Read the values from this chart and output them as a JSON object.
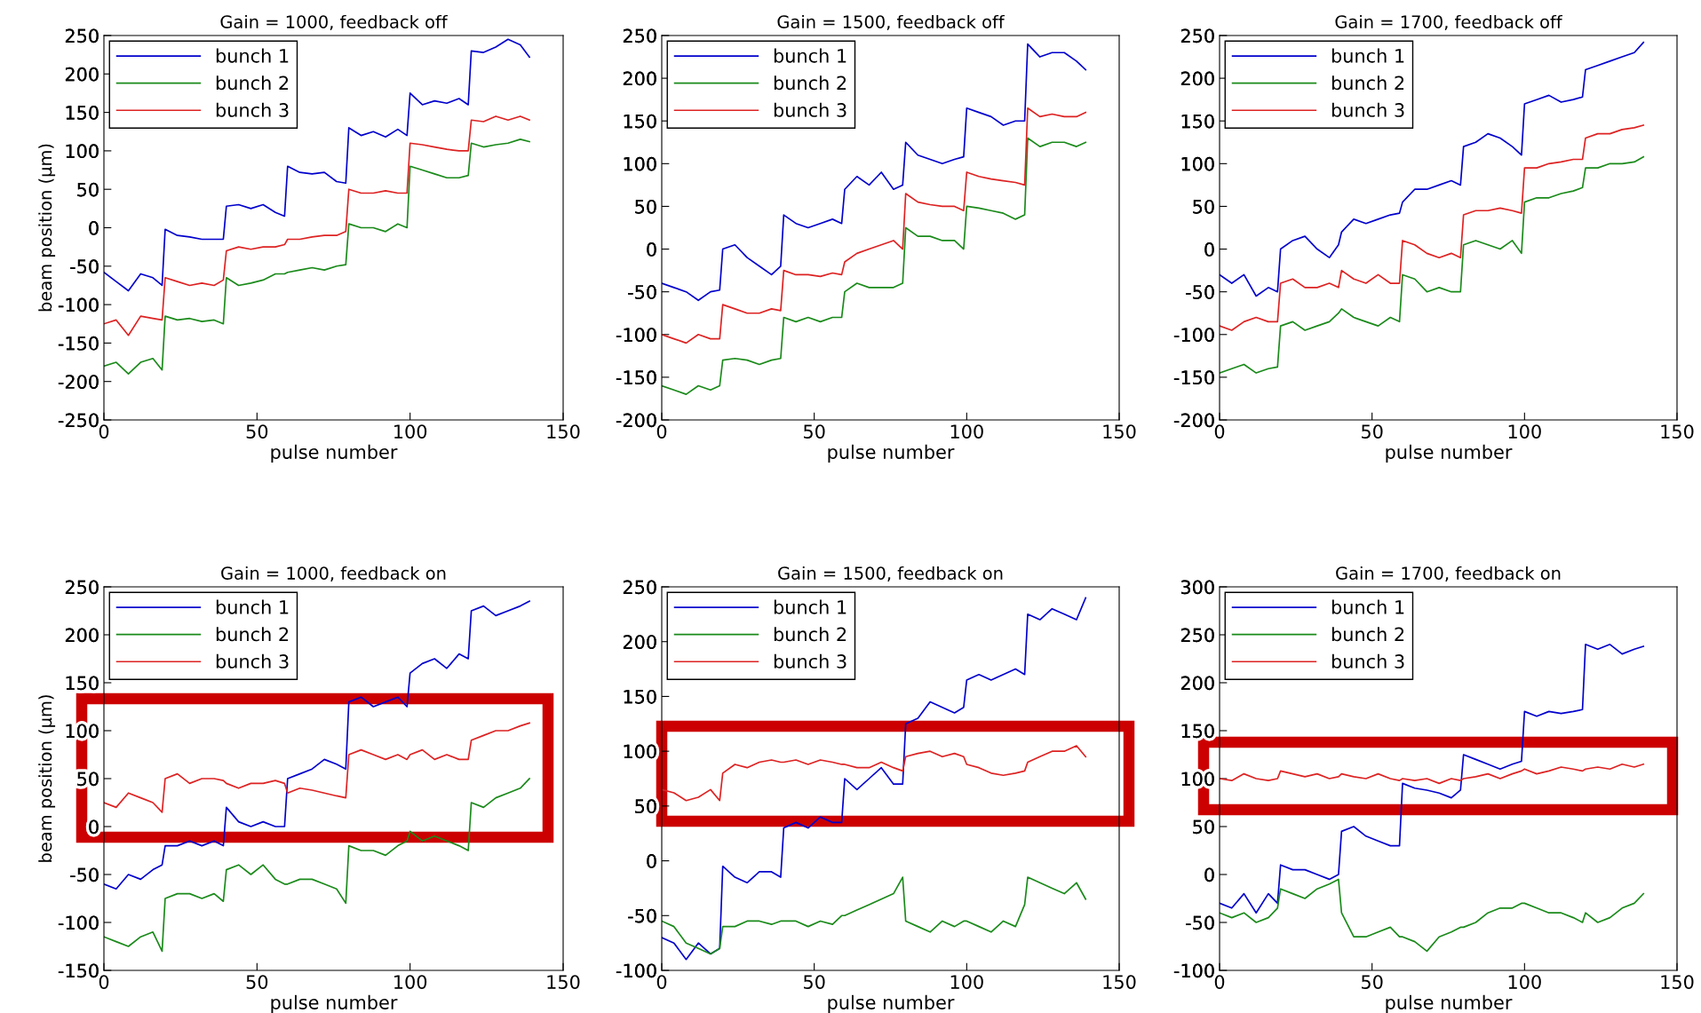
{
  "chart_data": [
    {
      "type": "line",
      "title": "Gain = 1000, feedback off",
      "xlabel": "pulse number",
      "ylabel": "beam position (μm)",
      "legend": "top left",
      "grid": false,
      "xlim": [
        0,
        150
      ],
      "xticks": [
        0,
        50,
        100,
        150
      ],
      "ylim": [
        -250,
        250
      ],
      "yticks": [
        -250,
        -200,
        -150,
        -100,
        -50,
        0,
        50,
        100,
        150,
        200,
        250
      ],
      "x": [
        0,
        4,
        8,
        12,
        16,
        19,
        20,
        24,
        28,
        32,
        36,
        39,
        40,
        44,
        48,
        52,
        56,
        59,
        60,
        64,
        68,
        72,
        76,
        79,
        80,
        84,
        88,
        92,
        96,
        99,
        100,
        104,
        108,
        112,
        116,
        119,
        120,
        124,
        128,
        132,
        136,
        139
      ],
      "series": [
        {
          "name": "bunch 1",
          "color": "#0000cc",
          "values": [
            -58,
            -70,
            -82,
            -60,
            -65,
            -75,
            -2,
            -10,
            -12,
            -15,
            -15,
            -15,
            28,
            30,
            25,
            30,
            20,
            15,
            80,
            72,
            70,
            72,
            60,
            58,
            130,
            120,
            125,
            118,
            128,
            120,
            175,
            160,
            165,
            162,
            168,
            160,
            230,
            228,
            235,
            245,
            238,
            222
          ]
        },
        {
          "name": "bunch 2",
          "color": "#1a8a1a",
          "values": [
            -180,
            -175,
            -190,
            -175,
            -170,
            -185,
            -115,
            -120,
            -118,
            -122,
            -120,
            -125,
            -65,
            -75,
            -72,
            -68,
            -60,
            -60,
            -58,
            -55,
            -52,
            -55,
            -50,
            -48,
            5,
            0,
            0,
            -5,
            5,
            0,
            80,
            75,
            70,
            65,
            65,
            68,
            110,
            105,
            108,
            110,
            115,
            112
          ]
        },
        {
          "name": "bunch 3",
          "color": "#dd2222",
          "values": [
            -125,
            -120,
            -140,
            -115,
            -118,
            -120,
            -65,
            -70,
            -75,
            -72,
            -75,
            -68,
            -30,
            -25,
            -28,
            -25,
            -25,
            -22,
            -15,
            -15,
            -12,
            -10,
            -10,
            -5,
            50,
            45,
            45,
            48,
            45,
            45,
            110,
            108,
            105,
            102,
            100,
            100,
            140,
            138,
            145,
            140,
            145,
            140
          ]
        }
      ]
    },
    {
      "type": "line",
      "title": "Gain = 1500, feedback off",
      "xlabel": "pulse number",
      "legend": "top left",
      "grid": false,
      "xlim": [
        0,
        150
      ],
      "xticks": [
        0,
        50,
        100,
        150
      ],
      "ylim": [
        -200,
        250
      ],
      "yticks": [
        -200,
        -150,
        -100,
        -50,
        0,
        50,
        100,
        150,
        200,
        250
      ],
      "x": [
        0,
        4,
        8,
        12,
        16,
        19,
        20,
        24,
        28,
        32,
        36,
        39,
        40,
        44,
        48,
        52,
        56,
        59,
        60,
        64,
        68,
        72,
        76,
        79,
        80,
        84,
        88,
        92,
        96,
        99,
        100,
        104,
        108,
        112,
        116,
        119,
        120,
        124,
        128,
        132,
        136,
        139
      ],
      "series": [
        {
          "name": "bunch 1",
          "color": "#0000cc",
          "values": [
            -40,
            -45,
            -50,
            -60,
            -50,
            -48,
            0,
            5,
            -10,
            -20,
            -30,
            -20,
            40,
            30,
            25,
            30,
            35,
            30,
            70,
            85,
            75,
            90,
            70,
            75,
            125,
            110,
            105,
            100,
            105,
            108,
            165,
            160,
            155,
            145,
            150,
            150,
            240,
            225,
            230,
            230,
            220,
            210
          ]
        },
        {
          "name": "bunch 2",
          "color": "#1a8a1a",
          "values": [
            -160,
            -165,
            -170,
            -160,
            -165,
            -160,
            -130,
            -128,
            -130,
            -135,
            -130,
            -128,
            -80,
            -85,
            -80,
            -85,
            -80,
            -80,
            -50,
            -40,
            -45,
            -45,
            -45,
            -40,
            25,
            15,
            15,
            10,
            10,
            0,
            50,
            48,
            45,
            42,
            35,
            40,
            130,
            120,
            125,
            125,
            120,
            125
          ]
        },
        {
          "name": "bunch 3",
          "color": "#dd2222",
          "values": [
            -100,
            -105,
            -110,
            -100,
            -105,
            -105,
            -65,
            -70,
            -75,
            -75,
            -70,
            -72,
            -25,
            -30,
            -30,
            -32,
            -28,
            -30,
            -15,
            -5,
            0,
            5,
            10,
            0,
            65,
            55,
            52,
            50,
            50,
            45,
            90,
            85,
            82,
            80,
            78,
            75,
            165,
            155,
            158,
            155,
            155,
            160
          ]
        }
      ]
    },
    {
      "type": "line",
      "title": "Gain = 1700, feedback off",
      "xlabel": "pulse number",
      "legend": "top left",
      "grid": false,
      "xlim": [
        0,
        150
      ],
      "xticks": [
        0,
        50,
        100,
        150
      ],
      "ylim": [
        -200,
        250
      ],
      "yticks": [
        -200,
        -150,
        -100,
        -50,
        0,
        50,
        100,
        150,
        200,
        250
      ],
      "x": [
        0,
        4,
        8,
        12,
        16,
        19,
        20,
        24,
        28,
        32,
        36,
        39,
        40,
        44,
        48,
        52,
        56,
        59,
        60,
        64,
        68,
        72,
        76,
        79,
        80,
        84,
        88,
        92,
        96,
        99,
        100,
        104,
        108,
        112,
        116,
        119,
        120,
        124,
        128,
        132,
        136,
        139
      ],
      "series": [
        {
          "name": "bunch 1",
          "color": "#0000cc",
          "values": [
            -30,
            -40,
            -30,
            -55,
            -45,
            -50,
            0,
            10,
            15,
            0,
            -10,
            5,
            20,
            35,
            30,
            35,
            40,
            42,
            55,
            70,
            70,
            75,
            80,
            75,
            120,
            125,
            135,
            130,
            120,
            110,
            170,
            175,
            180,
            172,
            175,
            178,
            210,
            215,
            220,
            225,
            230,
            242
          ]
        },
        {
          "name": "bunch 2",
          "color": "#1a8a1a",
          "values": [
            -145,
            -140,
            -135,
            -145,
            -140,
            -138,
            -90,
            -85,
            -95,
            -90,
            -85,
            -75,
            -70,
            -80,
            -85,
            -90,
            -80,
            -85,
            -30,
            -35,
            -50,
            -45,
            -50,
            -50,
            5,
            10,
            5,
            0,
            10,
            -5,
            55,
            60,
            60,
            65,
            68,
            72,
            95,
            95,
            100,
            100,
            102,
            108
          ]
        },
        {
          "name": "bunch 3",
          "color": "#dd2222",
          "values": [
            -90,
            -95,
            -85,
            -80,
            -85,
            -85,
            -40,
            -35,
            -45,
            -45,
            -40,
            -45,
            -25,
            -35,
            -40,
            -30,
            -40,
            -40,
            10,
            5,
            -5,
            -10,
            -5,
            -10,
            40,
            45,
            45,
            48,
            45,
            42,
            95,
            95,
            100,
            102,
            105,
            105,
            130,
            135,
            135,
            140,
            142,
            145
          ]
        }
      ]
    },
    {
      "type": "line",
      "title": "Gain = 1000, feedback on",
      "xlabel": "pulse number",
      "ylabel": "beam position (μm)",
      "legend": "top left",
      "grid": false,
      "xlim": [
        0,
        150
      ],
      "xticks": [
        0,
        50,
        100,
        150
      ],
      "ylim": [
        -150,
        250
      ],
      "yticks": [
        -150,
        -100,
        -50,
        0,
        50,
        100,
        150,
        200,
        250
      ],
      "x": [
        0,
        4,
        8,
        12,
        16,
        19,
        20,
        24,
        28,
        32,
        36,
        39,
        40,
        44,
        48,
        52,
        56,
        59,
        60,
        64,
        68,
        72,
        76,
        79,
        80,
        84,
        88,
        92,
        96,
        99,
        100,
        104,
        108,
        112,
        116,
        119,
        120,
        124,
        128,
        132,
        136,
        139
      ],
      "series": [
        {
          "name": "bunch 1",
          "color": "#0000cc",
          "values": [
            -60,
            -65,
            -50,
            -55,
            -45,
            -40,
            -20,
            -20,
            -15,
            -20,
            -15,
            -20,
            20,
            5,
            0,
            5,
            0,
            0,
            50,
            55,
            60,
            70,
            65,
            60,
            130,
            135,
            125,
            130,
            135,
            125,
            160,
            170,
            175,
            165,
            180,
            175,
            225,
            230,
            220,
            225,
            230,
            235
          ]
        },
        {
          "name": "bunch 2",
          "color": "#1a8a1a",
          "values": [
            -115,
            -120,
            -125,
            -115,
            -110,
            -130,
            -75,
            -70,
            -70,
            -75,
            -70,
            -78,
            -45,
            -40,
            -50,
            -40,
            -55,
            -60,
            -60,
            -55,
            -55,
            -60,
            -65,
            -80,
            -20,
            -25,
            -25,
            -30,
            -20,
            -15,
            -5,
            -15,
            -10,
            -15,
            -20,
            -25,
            25,
            20,
            30,
            35,
            40,
            50
          ]
        },
        {
          "name": "bunch 3",
          "color": "#dd2222",
          "values": [
            25,
            20,
            35,
            30,
            25,
            15,
            50,
            55,
            45,
            50,
            50,
            48,
            45,
            40,
            45,
            45,
            48,
            45,
            35,
            40,
            38,
            35,
            32,
            30,
            75,
            80,
            75,
            70,
            75,
            70,
            75,
            80,
            70,
            75,
            70,
            70,
            90,
            95,
            100,
            100,
            105,
            108
          ]
        }
      ]
    },
    {
      "type": "line",
      "title": "Gain = 1500, feedback on",
      "xlabel": "pulse number",
      "legend": "top left",
      "grid": false,
      "xlim": [
        0,
        150
      ],
      "xticks": [
        0,
        50,
        100,
        150
      ],
      "ylim": [
        -100,
        250
      ],
      "yticks": [
        -100,
        -50,
        0,
        50,
        100,
        150,
        200,
        250
      ],
      "x": [
        0,
        4,
        8,
        12,
        16,
        19,
        20,
        24,
        28,
        32,
        36,
        39,
        40,
        44,
        48,
        52,
        56,
        59,
        60,
        64,
        68,
        72,
        76,
        79,
        80,
        84,
        88,
        92,
        96,
        99,
        100,
        104,
        108,
        112,
        116,
        119,
        120,
        124,
        128,
        132,
        136,
        139
      ],
      "series": [
        {
          "name": "bunch 1",
          "color": "#0000cc",
          "values": [
            -70,
            -75,
            -90,
            -75,
            -85,
            -80,
            -5,
            -15,
            -20,
            -10,
            -10,
            -15,
            30,
            35,
            30,
            40,
            35,
            35,
            75,
            65,
            75,
            85,
            70,
            70,
            125,
            130,
            145,
            140,
            135,
            140,
            165,
            170,
            165,
            170,
            175,
            170,
            225,
            220,
            230,
            225,
            220,
            240
          ]
        },
        {
          "name": "bunch 2",
          "color": "#1a8a1a",
          "values": [
            -55,
            -60,
            -75,
            -80,
            -85,
            -80,
            -60,
            -60,
            -55,
            -55,
            -58,
            -55,
            -55,
            -55,
            -60,
            -55,
            -58,
            -50,
            -50,
            -45,
            -40,
            -35,
            -30,
            -15,
            -55,
            -60,
            -65,
            -55,
            -60,
            -55,
            -55,
            -60,
            -65,
            -55,
            -60,
            -40,
            -15,
            -20,
            -25,
            -30,
            -20,
            -35
          ]
        },
        {
          "name": "bunch 3",
          "color": "#dd2222",
          "values": [
            65,
            62,
            55,
            58,
            65,
            55,
            80,
            88,
            85,
            90,
            92,
            90,
            90,
            92,
            88,
            92,
            90,
            88,
            88,
            85,
            85,
            90,
            85,
            82,
            95,
            98,
            100,
            95,
            98,
            95,
            88,
            85,
            80,
            78,
            80,
            82,
            90,
            95,
            100,
            100,
            105,
            95
          ]
        }
      ]
    },
    {
      "type": "line",
      "title": "Gain = 1700, feedback on",
      "xlabel": "pulse number",
      "legend": "top left",
      "grid": false,
      "xlim": [
        0,
        150
      ],
      "xticks": [
        0,
        50,
        100,
        150
      ],
      "ylim": [
        -100,
        300
      ],
      "yticks": [
        -100,
        -50,
        0,
        50,
        100,
        150,
        200,
        250,
        300
      ],
      "x": [
        0,
        4,
        8,
        12,
        16,
        19,
        20,
        24,
        28,
        32,
        36,
        39,
        40,
        44,
        48,
        52,
        56,
        59,
        60,
        64,
        68,
        72,
        76,
        79,
        80,
        84,
        88,
        92,
        96,
        99,
        100,
        104,
        108,
        112,
        116,
        119,
        120,
        124,
        128,
        132,
        136,
        139
      ],
      "series": [
        {
          "name": "bunch 1",
          "color": "#0000cc",
          "values": [
            -30,
            -35,
            -20,
            -40,
            -20,
            -30,
            10,
            5,
            5,
            0,
            -5,
            0,
            45,
            50,
            40,
            35,
            30,
            30,
            95,
            90,
            88,
            85,
            80,
            88,
            125,
            120,
            115,
            110,
            115,
            118,
            170,
            165,
            170,
            168,
            170,
            172,
            240,
            235,
            240,
            230,
            235,
            238
          ]
        },
        {
          "name": "bunch 2",
          "color": "#1a8a1a",
          "values": [
            -40,
            -45,
            -40,
            -50,
            -45,
            -35,
            -15,
            -20,
            -25,
            -15,
            -10,
            -5,
            -40,
            -65,
            -65,
            -60,
            -55,
            -65,
            -65,
            -70,
            -80,
            -65,
            -60,
            -55,
            -55,
            -50,
            -40,
            -35,
            -35,
            -30,
            -30,
            -35,
            -40,
            -40,
            -45,
            -50,
            -40,
            -50,
            -45,
            -35,
            -30,
            -20
          ]
        },
        {
          "name": "bunch 3",
          "color": "#dd2222",
          "values": [
            100,
            98,
            105,
            100,
            98,
            100,
            108,
            105,
            102,
            105,
            100,
            102,
            105,
            102,
            100,
            105,
            100,
            98,
            100,
            98,
            100,
            95,
            100,
            98,
            100,
            102,
            105,
            100,
            105,
            108,
            110,
            105,
            108,
            112,
            110,
            108,
            110,
            112,
            110,
            115,
            112,
            115
          ]
        }
      ]
    }
  ]
}
